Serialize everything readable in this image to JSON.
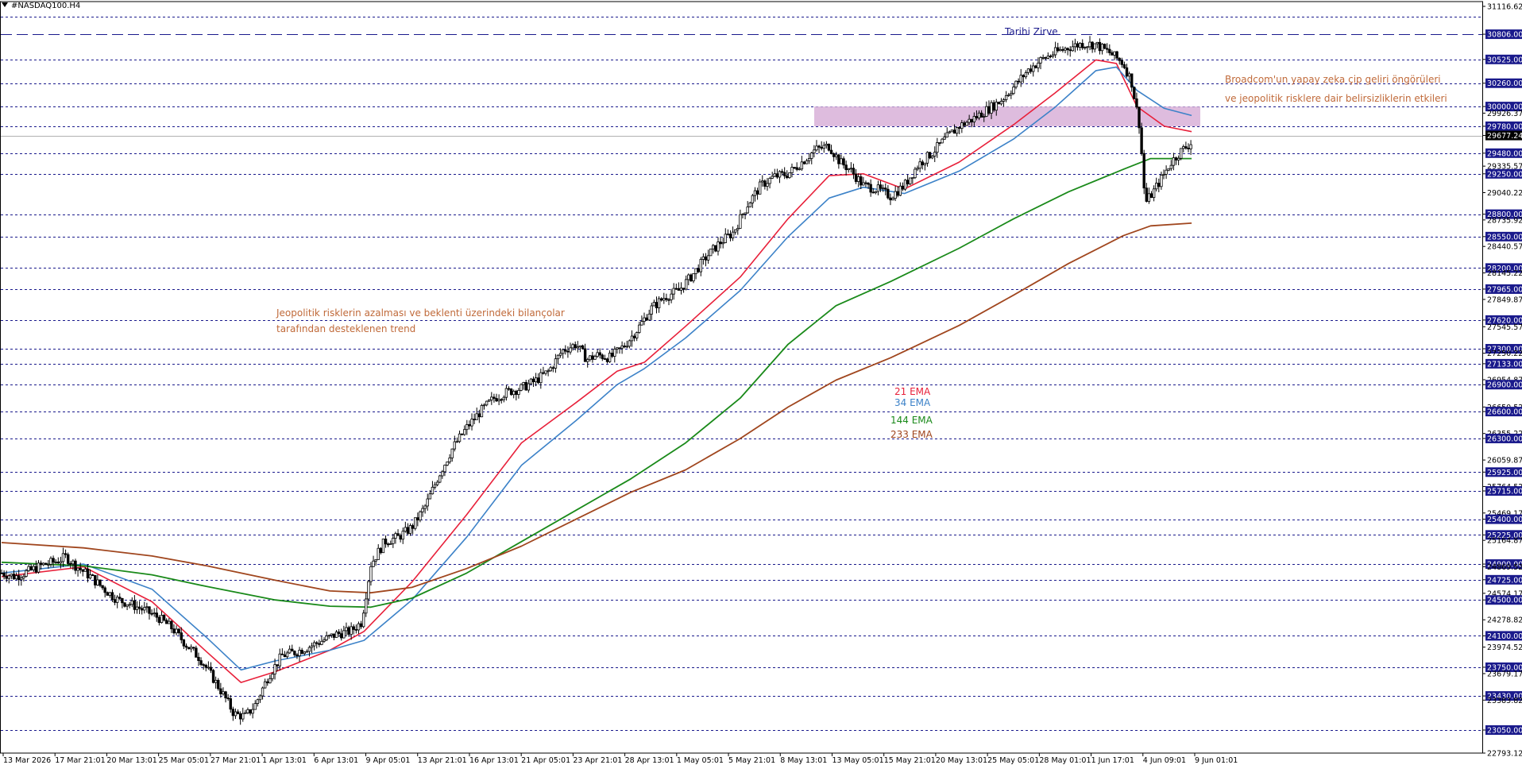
{
  "window": {
    "symbol_title": "#NASDAQ100.H4"
  },
  "colors": {
    "background": "#ffffff",
    "grid_dashed": "#1a1a8c",
    "candle": "#000000",
    "ema21": "#e8203a",
    "ema34": "#3c82c8",
    "ema144": "#1a8a1a",
    "ema233": "#a0461e",
    "resistance_zone": "#d8b0d8",
    "annotation_text": "#c06a3a",
    "zirve_text": "#1a1a8c"
  },
  "chart_data": {
    "type": "candlestick",
    "symbol": "#NASDAQ100.H4",
    "ylim": [
      22793.12,
      31116.62
    ],
    "current_price": 29677.24,
    "y_axis_labels": [
      "31116.62",
      "30806.00",
      "30525.00",
      "30260.00",
      "30000.00",
      "29926.37",
      "29780.00",
      "29677.24",
      "29480.00",
      "29335.57",
      "29250.00",
      "29040.22",
      "28800.00",
      "28735.92",
      "28550.00",
      "28440.57",
      "28200.00",
      "28145.22",
      "27965.00",
      "27849.87",
      "27620.00",
      "27545.57",
      "27300.00",
      "27250.22",
      "27133.00",
      "26954.87",
      "26900.00",
      "26650.52",
      "26600.00",
      "26355.22",
      "26300.00",
      "26059.87",
      "25925.00",
      "25764.52",
      "25715.00",
      "25469.17",
      "25400.00",
      "25225.00",
      "25164.87",
      "24900.00",
      "24869.52",
      "24725.00",
      "24574.17",
      "24500.00",
      "24278.82",
      "24100.00",
      "23974.52",
      "23750.00",
      "23679.17",
      "23430.00",
      "23383.82",
      "23050.00",
      "22793.12"
    ],
    "highlighted_levels": [
      31000,
      30806,
      30525,
      30260,
      30000,
      29780,
      29480,
      29250,
      28800,
      28550,
      28200,
      27965,
      27620,
      27300,
      27133,
      26900,
      26600,
      26300,
      25925,
      25715,
      25400,
      25225,
      24900,
      24725,
      24500,
      24100,
      23750,
      23430,
      23050
    ],
    "x_tick_labels": [
      "13 Mar 2026",
      "17 Mar 21:01",
      "20 Mar 13:01",
      "25 Mar 05:01",
      "27 Mar 21:01",
      "1 Apr 13:01",
      "6 Apr 13:01",
      "9 Apr 05:01",
      "13 Apr 21:01",
      "16 Apr 13:01",
      "21 Apr 05:01",
      "23 Apr 21:01",
      "28 Apr 13:01",
      "1 May 05:01",
      "5 May 21:01",
      "8 May 13:01",
      "13 May 05:01",
      "15 May 21:01",
      "20 May 13:01",
      "25 May 05:01",
      "28 May 01:01",
      "1 Jun 17:01",
      "4 Jun 09:01",
      "9 Jun 01:01"
    ],
    "close_path": [
      [
        0,
        24800
      ],
      [
        10,
        24760
      ],
      [
        20,
        24820
      ],
      [
        30,
        24890
      ],
      [
        40,
        24930
      ],
      [
        47,
        24980
      ],
      [
        55,
        24870
      ],
      [
        65,
        24760
      ],
      [
        75,
        24620
      ],
      [
        85,
        24500
      ],
      [
        95,
        24450
      ],
      [
        105,
        24380
      ],
      [
        115,
        24300
      ],
      [
        125,
        24180
      ],
      [
        135,
        24000
      ],
      [
        145,
        23850
      ],
      [
        155,
        23620
      ],
      [
        163,
        23420
      ],
      [
        170,
        23230
      ],
      [
        178,
        23200
      ],
      [
        185,
        23320
      ],
      [
        195,
        23650
      ],
      [
        205,
        23880
      ],
      [
        215,
        23920
      ],
      [
        225,
        23980
      ],
      [
        235,
        24050
      ],
      [
        245,
        24120
      ],
      [
        255,
        24150
      ],
      [
        263,
        24250
      ],
      [
        270,
        24900
      ],
      [
        280,
        25150
      ],
      [
        290,
        25200
      ],
      [
        300,
        25310
      ],
      [
        310,
        25550
      ],
      [
        320,
        25900
      ],
      [
        330,
        26200
      ],
      [
        340,
        26420
      ],
      [
        350,
        26600
      ],
      [
        360,
        26750
      ],
      [
        370,
        26820
      ],
      [
        380,
        26860
      ],
      [
        390,
        26940
      ],
      [
        400,
        27050
      ],
      [
        410,
        27280
      ],
      [
        420,
        27350
      ],
      [
        428,
        27180
      ],
      [
        436,
        27230
      ],
      [
        445,
        27200
      ],
      [
        455,
        27330
      ],
      [
        465,
        27520
      ],
      [
        475,
        27750
      ],
      [
        485,
        27880
      ],
      [
        495,
        27950
      ],
      [
        505,
        28120
      ],
      [
        515,
        28320
      ],
      [
        525,
        28480
      ],
      [
        535,
        28600
      ],
      [
        545,
        28900
      ],
      [
        555,
        29120
      ],
      [
        565,
        29220
      ],
      [
        575,
        29250
      ],
      [
        585,
        29380
      ],
      [
        595,
        29520
      ],
      [
        605,
        29560
      ],
      [
        613,
        29380
      ],
      [
        620,
        29300
      ],
      [
        630,
        29120
      ],
      [
        640,
        29080
      ],
      [
        650,
        29000
      ],
      [
        660,
        29120
      ],
      [
        670,
        29350
      ],
      [
        680,
        29480
      ],
      [
        690,
        29640
      ],
      [
        700,
        29780
      ],
      [
        710,
        29860
      ],
      [
        720,
        29960
      ],
      [
        730,
        30060
      ],
      [
        740,
        30220
      ],
      [
        750,
        30400
      ],
      [
        760,
        30520
      ],
      [
        770,
        30600
      ],
      [
        780,
        30660
      ],
      [
        790,
        30700
      ],
      [
        800,
        30690
      ],
      [
        810,
        30600
      ],
      [
        820,
        30480
      ],
      [
        826,
        30280
      ],
      [
        832,
        29780
      ],
      [
        836,
        28920
      ],
      [
        842,
        29050
      ],
      [
        848,
        29200
      ],
      [
        855,
        29380
      ],
      [
        862,
        29500
      ],
      [
        870,
        29600
      ]
    ],
    "series": [
      {
        "name": "21 EMA",
        "values": [
          [
            0,
            24760
          ],
          [
            60,
            24870
          ],
          [
            110,
            24480
          ],
          [
            150,
            23920
          ],
          [
            175,
            23580
          ],
          [
            200,
            23700
          ],
          [
            240,
            23940
          ],
          [
            265,
            24150
          ],
          [
            300,
            24700
          ],
          [
            340,
            25450
          ],
          [
            380,
            26250
          ],
          [
            420,
            26700
          ],
          [
            450,
            27050
          ],
          [
            470,
            27150
          ],
          [
            500,
            27550
          ],
          [
            540,
            28100
          ],
          [
            575,
            28750
          ],
          [
            605,
            29230
          ],
          [
            630,
            29250
          ],
          [
            660,
            29080
          ],
          [
            700,
            29380
          ],
          [
            740,
            29800
          ],
          [
            770,
            30150
          ],
          [
            800,
            30520
          ],
          [
            815,
            30480
          ],
          [
            830,
            30000
          ],
          [
            850,
            29780
          ],
          [
            870,
            29720
          ]
        ]
      },
      {
        "name": "34 EMA",
        "values": [
          [
            0,
            24800
          ],
          [
            60,
            24900
          ],
          [
            110,
            24620
          ],
          [
            150,
            24080
          ],
          [
            175,
            23720
          ],
          [
            200,
            23820
          ],
          [
            240,
            23940
          ],
          [
            265,
            24050
          ],
          [
            300,
            24500
          ],
          [
            340,
            25200
          ],
          [
            380,
            26000
          ],
          [
            420,
            26500
          ],
          [
            450,
            26900
          ],
          [
            470,
            27080
          ],
          [
            500,
            27420
          ],
          [
            540,
            27950
          ],
          [
            575,
            28550
          ],
          [
            605,
            28980
          ],
          [
            630,
            29100
          ],
          [
            660,
            29030
          ],
          [
            700,
            29280
          ],
          [
            740,
            29640
          ],
          [
            770,
            29990
          ],
          [
            800,
            30400
          ],
          [
            815,
            30440
          ],
          [
            830,
            30180
          ],
          [
            850,
            29980
          ],
          [
            870,
            29900
          ]
        ]
      },
      {
        "name": "144 EMA",
        "values": [
          [
            0,
            24920
          ],
          [
            60,
            24880
          ],
          [
            110,
            24780
          ],
          [
            150,
            24650
          ],
          [
            200,
            24500
          ],
          [
            240,
            24430
          ],
          [
            270,
            24420
          ],
          [
            300,
            24520
          ],
          [
            340,
            24800
          ],
          [
            380,
            25150
          ],
          [
            420,
            25500
          ],
          [
            460,
            25850
          ],
          [
            500,
            26250
          ],
          [
            540,
            26750
          ],
          [
            575,
            27350
          ],
          [
            610,
            27780
          ],
          [
            650,
            28050
          ],
          [
            700,
            28420
          ],
          [
            740,
            28750
          ],
          [
            780,
            29050
          ],
          [
            820,
            29300
          ],
          [
            840,
            29420
          ],
          [
            870,
            29420
          ]
        ]
      },
      {
        "name": "233 EMA",
        "values": [
          [
            0,
            25140
          ],
          [
            60,
            25080
          ],
          [
            110,
            24990
          ],
          [
            150,
            24880
          ],
          [
            200,
            24720
          ],
          [
            240,
            24600
          ],
          [
            270,
            24580
          ],
          [
            300,
            24640
          ],
          [
            340,
            24850
          ],
          [
            380,
            25100
          ],
          [
            420,
            25400
          ],
          [
            460,
            25700
          ],
          [
            500,
            25950
          ],
          [
            540,
            26300
          ],
          [
            575,
            26650
          ],
          [
            610,
            26950
          ],
          [
            650,
            27200
          ],
          [
            700,
            27560
          ],
          [
            740,
            27900
          ],
          [
            780,
            28250
          ],
          [
            820,
            28560
          ],
          [
            840,
            28670
          ],
          [
            870,
            28700
          ]
        ]
      }
    ],
    "resistance_zone": [
      29780,
      30000
    ],
    "annotations": {
      "zirve_label": "Tarihi Zirve",
      "zirve_level": 30806,
      "trend_note_1": "Jeopolitik risklerin azalması ve beklenti üzerindeki bilançolar",
      "trend_note_2": "tarafından desteklenen trend",
      "broadcom_note_1": "Broadcom'un yapay zeka çip geliri öngörüleri",
      "broadcom_note_2": "ve jeopolitik risklere dair belirsizliklerin etkileri"
    },
    "legend": [
      "21 EMA",
      "34 EMA",
      "144 EMA",
      "233 EMA"
    ],
    "grid": true
  }
}
